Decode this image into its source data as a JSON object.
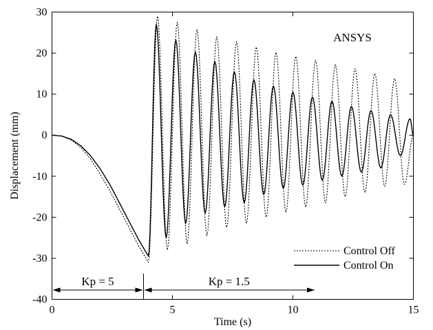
{
  "chart_data": {
    "type": "line",
    "xlabel": "Time (s)",
    "ylabel": "Displacement (mm)",
    "xlim": [
      0,
      15
    ],
    "ylim": [
      -40,
      30
    ],
    "xticks": [
      0,
      5,
      10,
      15
    ],
    "yticks": [
      -40,
      -30,
      -20,
      -10,
      0,
      10,
      20,
      30
    ],
    "grid": false,
    "legend_position": "bottom-right",
    "annotations": {
      "software": "ANSYS",
      "phase1": "Kp = 5",
      "phase2": "Kp = 1.5",
      "switch_time": 3.8,
      "phase2_arrow_end": 10.9
    },
    "series": [
      {
        "name": "Control Off",
        "style": "dotted",
        "pre_switch": [
          [
            0,
            0
          ],
          [
            0.4,
            -0.2
          ],
          [
            0.8,
            -1.2
          ],
          [
            1.2,
            -3
          ],
          [
            1.6,
            -5.8
          ],
          [
            2.0,
            -9.5
          ],
          [
            2.4,
            -13.5
          ],
          [
            2.8,
            -18
          ],
          [
            3.2,
            -22.5
          ],
          [
            3.6,
            -27
          ],
          [
            3.9,
            -30
          ],
          [
            4.0,
            -31
          ]
        ],
        "peak_times": [
          4.38,
          5.2,
          6.02,
          6.84,
          7.66,
          8.48,
          9.3,
          10.12,
          10.94,
          11.76,
          12.58,
          13.4,
          14.22
        ],
        "peaks": [
          29,
          27.5,
          25.8,
          24,
          22.8,
          21.5,
          20.2,
          19.2,
          18.3,
          17.2,
          16.2,
          15,
          13.8
        ],
        "trough_times": [
          4.79,
          5.61,
          6.43,
          7.25,
          8.07,
          8.89,
          9.71,
          10.53,
          11.35,
          12.17,
          12.99,
          13.81,
          14.63
        ],
        "troughs": [
          -28,
          -26.5,
          -24.5,
          -22.5,
          -21.5,
          -20,
          -18.8,
          -17.5,
          -16.5,
          -15,
          -14,
          -12.5,
          -12
        ],
        "end_value": 0
      },
      {
        "name": "Control On",
        "style": "solid",
        "pre_switch": [
          [
            0,
            0
          ],
          [
            0.4,
            -0.2
          ],
          [
            0.8,
            -1
          ],
          [
            1.2,
            -2.6
          ],
          [
            1.6,
            -5
          ],
          [
            2.0,
            -8.2
          ],
          [
            2.4,
            -12
          ],
          [
            2.8,
            -16.5
          ],
          [
            3.2,
            -21
          ],
          [
            3.6,
            -25.5
          ],
          [
            3.9,
            -28.5
          ],
          [
            4.0,
            -29.5
          ]
        ],
        "peak_times": [
          4.33,
          5.14,
          5.95,
          6.76,
          7.57,
          8.38,
          9.19,
          10.0,
          10.81,
          11.62,
          12.43,
          13.24,
          14.05,
          14.86
        ],
        "peaks": [
          27,
          23.2,
          20.3,
          18,
          15.5,
          13.5,
          12,
          10.5,
          9.3,
          8.3,
          7,
          6,
          5,
          4
        ],
        "trough_times": [
          4.74,
          5.55,
          6.36,
          7.17,
          7.98,
          8.79,
          9.6,
          10.41,
          11.22,
          12.03,
          12.84,
          13.65,
          14.46
        ],
        "troughs": [
          -25,
          -21.5,
          -19,
          -17.5,
          -16.5,
          -14.5,
          -13,
          -12.2,
          -11,
          -10,
          -9,
          -8,
          -5
        ],
        "end_value": 0
      }
    ]
  }
}
